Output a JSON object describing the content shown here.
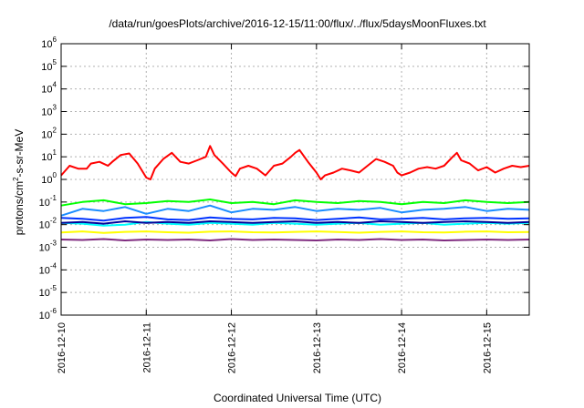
{
  "chart_data": {
    "type": "line",
    "title": "/data/run/goesPlots/archive/2016-12-15/11:00/flux/../flux/5daysMoonFluxes.txt",
    "xlabel": "Coordinated Universal Time (UTC)",
    "ylabel": "protons/cm²-s-sr-MeV",
    "ylabel_parts": [
      "protons/cm",
      "2",
      "-s-sr-MeV"
    ],
    "yscale": "log",
    "ylim": [
      -6,
      6
    ],
    "ytick_exponents": [
      -6,
      -5,
      -4,
      -3,
      -2,
      -1,
      0,
      1,
      2,
      3,
      4,
      5,
      6
    ],
    "ytick_base": "10",
    "xlim": [
      0,
      5.5
    ],
    "x_units": "days since 2016-12-10 00:00 UTC",
    "xtick_labels": [
      "2016-12-10",
      "2016-12-11",
      "2016-12-12",
      "2016-12-13",
      "2016-12-14",
      "2016-12-15"
    ],
    "grid": true,
    "legend": "none",
    "series": [
      {
        "color": "#ff0000",
        "x": [
          0.0,
          0.1,
          0.2,
          0.3,
          0.35,
          0.45,
          0.55,
          0.6,
          0.7,
          0.8,
          0.9,
          1.0,
          1.05,
          1.1,
          1.2,
          1.3,
          1.4,
          1.5,
          1.6,
          1.7,
          1.75,
          1.8,
          1.9,
          2.0,
          2.05,
          2.1,
          2.2,
          2.3,
          2.4,
          2.5,
          2.6,
          2.7,
          2.75,
          2.8,
          2.9,
          3.0,
          3.05,
          3.1,
          3.2,
          3.3,
          3.4,
          3.5,
          3.6,
          3.7,
          3.8,
          3.9,
          3.95,
          4.0,
          4.1,
          4.2,
          4.3,
          4.4,
          4.5,
          4.6,
          4.65,
          4.7,
          4.8,
          4.9,
          5.0,
          5.1,
          5.2,
          5.3,
          5.4,
          5.5
        ],
        "y": [
          1.5,
          4,
          3,
          3,
          5,
          6,
          4,
          6,
          12,
          14,
          5,
          1.2,
          1,
          3,
          8,
          15,
          6,
          5,
          7,
          10,
          30,
          12,
          5,
          2,
          1.4,
          3,
          4,
          3,
          1.5,
          4,
          5,
          10,
          15,
          20,
          6,
          2,
          1,
          1.5,
          2,
          3,
          2.5,
          2,
          4,
          8,
          6,
          4,
          2,
          1.5,
          2,
          3,
          3.5,
          3,
          4,
          10,
          15,
          7,
          5,
          2.5,
          3.5,
          2,
          3,
          4,
          3.5,
          4
        ]
      },
      {
        "color": "#00ff00",
        "x": [
          0.0,
          0.25,
          0.5,
          0.75,
          1.0,
          1.25,
          1.5,
          1.75,
          2.0,
          2.25,
          2.5,
          2.75,
          3.0,
          3.25,
          3.5,
          3.75,
          4.0,
          4.25,
          4.5,
          4.75,
          5.0,
          5.25,
          5.5
        ],
        "y": [
          0.07,
          0.1,
          0.12,
          0.08,
          0.09,
          0.11,
          0.1,
          0.13,
          0.09,
          0.1,
          0.08,
          0.12,
          0.1,
          0.09,
          0.11,
          0.1,
          0.08,
          0.1,
          0.09,
          0.12,
          0.1,
          0.09,
          0.1
        ]
      },
      {
        "color": "#00ffff",
        "x": [
          0.0,
          0.25,
          0.5,
          0.75,
          1.0,
          1.25,
          1.5,
          1.75,
          2.0,
          2.25,
          2.5,
          2.75,
          3.0,
          3.25,
          3.5,
          3.75,
          4.0,
          4.25,
          4.5,
          4.75,
          5.0,
          5.25,
          5.5
        ],
        "y": [
          0.012,
          0.011,
          0.009,
          0.01,
          0.013,
          0.011,
          0.01,
          0.012,
          0.011,
          0.01,
          0.012,
          0.011,
          0.01,
          0.011,
          0.012,
          0.01,
          0.011,
          0.012,
          0.01,
          0.011,
          0.012,
          0.011,
          0.012
        ]
      },
      {
        "color": "#1a8cff",
        "x": [
          0.0,
          0.25,
          0.5,
          0.75,
          1.0,
          1.25,
          1.5,
          1.75,
          2.0,
          2.25,
          2.5,
          2.75,
          3.0,
          3.25,
          3.5,
          3.75,
          4.0,
          4.25,
          4.5,
          4.75,
          5.0,
          5.25,
          5.5
        ],
        "y": [
          0.025,
          0.05,
          0.04,
          0.06,
          0.03,
          0.05,
          0.04,
          0.07,
          0.035,
          0.05,
          0.045,
          0.06,
          0.04,
          0.05,
          0.045,
          0.055,
          0.035,
          0.045,
          0.05,
          0.06,
          0.04,
          0.05,
          0.045
        ]
      },
      {
        "color": "#0033ff",
        "x": [
          0.0,
          0.25,
          0.5,
          0.75,
          1.0,
          1.25,
          1.5,
          1.75,
          2.0,
          2.25,
          2.5,
          2.75,
          3.0,
          3.25,
          3.5,
          3.75,
          4.0,
          4.25,
          4.5,
          4.75,
          5.0,
          5.25,
          5.5
        ],
        "y": [
          0.02,
          0.018,
          0.015,
          0.02,
          0.022,
          0.017,
          0.016,
          0.021,
          0.018,
          0.017,
          0.02,
          0.019,
          0.016,
          0.018,
          0.021,
          0.017,
          0.018,
          0.02,
          0.017,
          0.019,
          0.02,
          0.018,
          0.019
        ]
      },
      {
        "color": "#000099",
        "x": [
          0.0,
          0.25,
          0.5,
          0.75,
          1.0,
          1.25,
          1.5,
          1.75,
          2.0,
          2.25,
          2.5,
          2.75,
          3.0,
          3.25,
          3.5,
          3.75,
          4.0,
          4.25,
          4.5,
          4.75,
          5.0,
          5.25,
          5.5
        ],
        "y": [
          0.012,
          0.013,
          0.011,
          0.014,
          0.012,
          0.013,
          0.012,
          0.014,
          0.013,
          0.012,
          0.013,
          0.014,
          0.012,
          0.013,
          0.012,
          0.014,
          0.013,
          0.012,
          0.013,
          0.014,
          0.013,
          0.012,
          0.013
        ]
      },
      {
        "color": "#ffff00",
        "x": [
          0.0,
          0.25,
          0.5,
          0.75,
          1.0,
          1.25,
          1.5,
          1.75,
          2.0,
          2.25,
          2.5,
          2.75,
          3.0,
          3.25,
          3.5,
          3.75,
          4.0,
          4.25,
          4.5,
          4.75,
          5.0,
          5.25,
          5.5
        ],
        "y": [
          0.0045,
          0.005,
          0.0043,
          0.0048,
          0.005,
          0.0046,
          0.0044,
          0.0049,
          0.005,
          0.0046,
          0.0045,
          0.0048,
          0.005,
          0.0047,
          0.0044,
          0.0048,
          0.005,
          0.0046,
          0.0045,
          0.0049,
          0.005,
          0.0046,
          0.0047
        ]
      },
      {
        "color": "#7f2a7f",
        "x": [
          0.0,
          0.25,
          0.5,
          0.75,
          1.0,
          1.25,
          1.5,
          1.75,
          2.0,
          2.25,
          2.5,
          2.75,
          3.0,
          3.25,
          3.5,
          3.75,
          4.0,
          4.25,
          4.5,
          4.75,
          5.0,
          5.25,
          5.5
        ],
        "y": [
          0.0022,
          0.0021,
          0.0023,
          0.002,
          0.0022,
          0.0021,
          0.0022,
          0.002,
          0.0023,
          0.0021,
          0.0022,
          0.0021,
          0.002,
          0.0022,
          0.0021,
          0.0023,
          0.0021,
          0.0022,
          0.002,
          0.0021,
          0.0022,
          0.0021,
          0.0022
        ]
      }
    ]
  }
}
